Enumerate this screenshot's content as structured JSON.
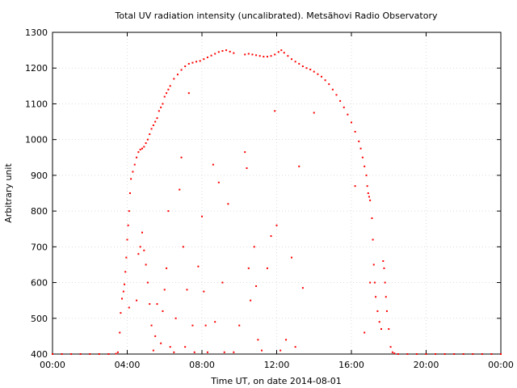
{
  "chart_data": {
    "type": "scatter",
    "title": "Total UV radiation intensity (uncalibrated). Metsähovi Radio Observatory",
    "xlabel": "Time UT, on date 2014-08-01",
    "ylabel": "Arbitrary unit",
    "x_unit": "hours UT",
    "xlim": [
      0,
      24
    ],
    "ylim": [
      400,
      1300
    ],
    "x_ticks": [
      0,
      4,
      8,
      12,
      16,
      20,
      24
    ],
    "x_tick_labels": [
      "00:00",
      "04:00",
      "08:00",
      "12:00",
      "16:00",
      "20:00",
      "00:00"
    ],
    "y_ticks": [
      400,
      500,
      600,
      700,
      800,
      900,
      1000,
      1100,
      1200,
      1300
    ],
    "y_tick_labels": [
      "400",
      "500",
      "600",
      "700",
      "800",
      "900",
      "1000",
      "1100",
      "1200",
      "1300"
    ],
    "grid": true,
    "point_color": "#ff0000",
    "series": [
      {
        "points": [
          [
            0.0,
            400
          ],
          [
            0.5,
            400
          ],
          [
            1.0,
            400
          ],
          [
            1.5,
            400
          ],
          [
            2.0,
            400
          ],
          [
            2.5,
            400
          ],
          [
            3.0,
            400
          ],
          [
            3.4,
            401
          ],
          [
            3.5,
            405
          ],
          [
            3.6,
            460
          ],
          [
            3.65,
            515
          ],
          [
            3.72,
            555
          ],
          [
            3.8,
            575
          ],
          [
            3.85,
            595
          ],
          [
            3.9,
            630
          ],
          [
            3.95,
            670
          ],
          [
            4.0,
            720
          ],
          [
            4.05,
            760
          ],
          [
            4.1,
            800
          ],
          [
            4.15,
            850
          ],
          [
            4.2,
            890
          ],
          [
            4.3,
            910
          ],
          [
            4.4,
            930
          ],
          [
            4.5,
            950
          ],
          [
            4.6,
            965
          ],
          [
            4.7,
            972
          ],
          [
            4.8,
            975
          ],
          [
            4.9,
            980
          ],
          [
            5.0,
            990
          ],
          [
            5.1,
            1000
          ],
          [
            5.2,
            1015
          ],
          [
            5.3,
            1030
          ],
          [
            5.4,
            1040
          ],
          [
            5.5,
            1050
          ],
          [
            5.6,
            1060
          ],
          [
            5.7,
            1080
          ],
          [
            5.8,
            1090
          ],
          [
            5.9,
            1100
          ],
          [
            6.0,
            1120
          ],
          [
            6.1,
            1130
          ],
          [
            6.2,
            1140
          ],
          [
            6.3,
            1150
          ],
          [
            6.5,
            1170
          ],
          [
            6.7,
            1182
          ],
          [
            6.9,
            1195
          ],
          [
            7.1,
            1205
          ],
          [
            7.3,
            1212
          ],
          [
            7.5,
            1215
          ],
          [
            7.7,
            1218
          ],
          [
            7.9,
            1220
          ],
          [
            8.1,
            1225
          ],
          [
            8.3,
            1230
          ],
          [
            8.5,
            1235
          ],
          [
            8.7,
            1240
          ],
          [
            8.9,
            1245
          ],
          [
            9.1,
            1248
          ],
          [
            9.3,
            1250
          ],
          [
            9.5,
            1246
          ],
          [
            9.7,
            1242
          ],
          [
            10.3,
            1238
          ],
          [
            10.5,
            1240
          ],
          [
            10.7,
            1238
          ],
          [
            10.9,
            1236
          ],
          [
            11.1,
            1234
          ],
          [
            11.3,
            1232
          ],
          [
            11.5,
            1232
          ],
          [
            11.7,
            1234
          ],
          [
            11.9,
            1238
          ],
          [
            12.1,
            1245
          ],
          [
            12.25,
            1250
          ],
          [
            12.4,
            1243
          ],
          [
            12.6,
            1234
          ],
          [
            12.8,
            1225
          ],
          [
            13.0,
            1218
          ],
          [
            13.2,
            1212
          ],
          [
            13.4,
            1205
          ],
          [
            13.6,
            1200
          ],
          [
            13.8,
            1196
          ],
          [
            14.0,
            1190
          ],
          [
            14.2,
            1183
          ],
          [
            14.4,
            1176
          ],
          [
            14.6,
            1166
          ],
          [
            14.8,
            1155
          ],
          [
            15.0,
            1140
          ],
          [
            15.2,
            1125
          ],
          [
            15.4,
            1108
          ],
          [
            15.6,
            1090
          ],
          [
            15.8,
            1070
          ],
          [
            16.0,
            1048
          ],
          [
            16.2,
            1022
          ],
          [
            16.4,
            995
          ],
          [
            16.5,
            975
          ],
          [
            16.6,
            950
          ],
          [
            16.7,
            925
          ],
          [
            16.8,
            900
          ],
          [
            16.85,
            870
          ],
          [
            16.9,
            850
          ],
          [
            16.95,
            840
          ],
          [
            17.0,
            830
          ],
          [
            17.1,
            780
          ],
          [
            17.15,
            720
          ],
          [
            17.2,
            650
          ],
          [
            17.25,
            600
          ],
          [
            17.3,
            560
          ],
          [
            17.4,
            520
          ],
          [
            17.5,
            490
          ],
          [
            17.6,
            470
          ],
          [
            17.7,
            660
          ],
          [
            17.75,
            640
          ],
          [
            17.8,
            600
          ],
          [
            17.85,
            560
          ],
          [
            17.9,
            520
          ],
          [
            18.0,
            470
          ],
          [
            18.1,
            420
          ],
          [
            18.2,
            405
          ],
          [
            18.3,
            402
          ],
          [
            18.5,
            400
          ],
          [
            19.0,
            400
          ],
          [
            19.5,
            400
          ],
          [
            20.0,
            400
          ],
          [
            20.5,
            400
          ],
          [
            21.0,
            400
          ],
          [
            21.5,
            400
          ],
          [
            22.0,
            400
          ],
          [
            22.5,
            400
          ],
          [
            23.0,
            400
          ],
          [
            23.5,
            400
          ],
          [
            24.0,
            400
          ],
          [
            4.1,
            530
          ],
          [
            4.5,
            550
          ],
          [
            4.6,
            680
          ],
          [
            4.7,
            700
          ],
          [
            4.8,
            740
          ],
          [
            4.9,
            690
          ],
          [
            5.0,
            650
          ],
          [
            5.1,
            600
          ],
          [
            5.2,
            540
          ],
          [
            5.3,
            480
          ],
          [
            5.4,
            410
          ],
          [
            5.5,
            450
          ],
          [
            5.6,
            540
          ],
          [
            5.8,
            430
          ],
          [
            5.9,
            520
          ],
          [
            6.0,
            580
          ],
          [
            6.1,
            640
          ],
          [
            6.2,
            800
          ],
          [
            6.3,
            420
          ],
          [
            6.5,
            405
          ],
          [
            6.6,
            500
          ],
          [
            6.8,
            860
          ],
          [
            6.9,
            950
          ],
          [
            7.0,
            700
          ],
          [
            7.1,
            420
          ],
          [
            7.2,
            580
          ],
          [
            7.3,
            1130
          ],
          [
            7.5,
            480
          ],
          [
            7.6,
            405
          ],
          [
            7.8,
            645
          ],
          [
            8.0,
            785
          ],
          [
            8.1,
            575
          ],
          [
            8.2,
            480
          ],
          [
            8.3,
            405
          ],
          [
            8.6,
            930
          ],
          [
            8.7,
            490
          ],
          [
            8.9,
            880
          ],
          [
            9.1,
            600
          ],
          [
            9.2,
            405
          ],
          [
            9.4,
            820
          ],
          [
            9.7,
            405
          ],
          [
            10.0,
            480
          ],
          [
            10.3,
            965
          ],
          [
            10.4,
            920
          ],
          [
            10.5,
            640
          ],
          [
            10.6,
            550
          ],
          [
            10.8,
            700
          ],
          [
            10.9,
            590
          ],
          [
            11.0,
            440
          ],
          [
            11.2,
            410
          ],
          [
            11.5,
            640
          ],
          [
            11.7,
            730
          ],
          [
            11.9,
            1080
          ],
          [
            12.0,
            760
          ],
          [
            12.2,
            410
          ],
          [
            12.5,
            440
          ],
          [
            12.8,
            670
          ],
          [
            13.0,
            420
          ],
          [
            13.2,
            925
          ],
          [
            13.4,
            585
          ],
          [
            14.0,
            1075
          ],
          [
            16.2,
            870
          ],
          [
            16.7,
            460
          ],
          [
            17.0,
            600
          ]
        ]
      }
    ]
  }
}
